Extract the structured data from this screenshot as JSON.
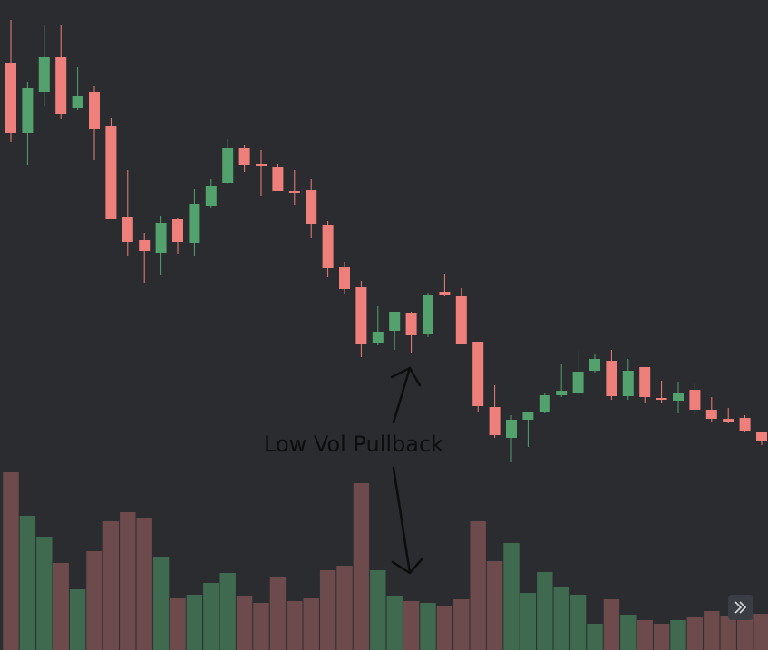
{
  "chart_data": {
    "type": "candlestick",
    "open": [
      648,
      570,
      616,
      654,
      598,
      615,
      578,
      478,
      452,
      438,
      475,
      449,
      490,
      515,
      554,
      536,
      533,
      506,
      507,
      469,
      423,
      400,
      339,
      352,
      372,
      349,
      395,
      391,
      340,
      268,
      234,
      254,
      263,
      281,
      283,
      308,
      319,
      280,
      312,
      278,
      275,
      287,
      265,
      255,
      256,
      241
    ],
    "high": [
      695,
      627,
      689,
      689,
      643,
      622,
      587,
      529,
      460,
      479,
      477,
      508,
      520,
      564,
      557,
      551,
      536,
      530,
      519,
      473,
      428,
      407,
      379,
      373,
      373,
      394,
      415,
      399,
      340,
      292,
      259,
      262,
      283,
      316,
      330,
      326,
      331,
      321,
      312,
      297,
      296,
      295,
      279,
      267,
      259,
      241
    ],
    "low": [
      560,
      535,
      600,
      586,
      596,
      540,
      475,
      435,
      405,
      414,
      437,
      435,
      488,
      514,
      527,
      501,
      506,
      491,
      455,
      411,
      393,
      323,
      336,
      331,
      328,
      345,
      390,
      337,
      262,
      234,
      207,
      224,
      261,
      279,
      281,
      306,
      276,
      276,
      273,
      273,
      261,
      260,
      252,
      250,
      240,
      226
    ],
    "close": [
      570,
      620,
      654,
      591,
      611,
      575,
      475,
      450,
      440,
      471,
      450,
      492,
      512,
      554,
      535,
      534,
      506,
      504,
      470,
      421,
      398,
      338,
      351,
      373,
      348,
      392,
      392,
      338,
      269,
      237,
      254,
      262,
      281,
      286,
      307,
      321,
      280,
      308,
      279,
      276,
      284,
      265,
      255,
      252,
      242,
      230
    ],
    "volume": [
      196,
      148,
      125,
      96,
      67,
      109,
      142,
      152,
      146,
      103,
      57,
      61,
      74,
      85,
      60,
      52,
      80,
      54,
      57,
      88,
      93,
      184,
      88,
      60,
      54,
      52,
      49,
      56,
      142,
      98,
      118,
      63,
      86,
      69,
      61,
      29,
      56,
      39,
      33,
      29,
      33,
      36,
      43,
      38,
      34,
      40
    ],
    "up_color": "#53a26e",
    "down_color": "#ef7f7a",
    "volume_up_color": "#3f6a4f",
    "volume_down_color": "#6d4b4d",
    "ylim": [
      0,
      717
    ],
    "y2lim": [
      0,
      717
    ],
    "annotation": "Low Vol Pullback"
  }
}
